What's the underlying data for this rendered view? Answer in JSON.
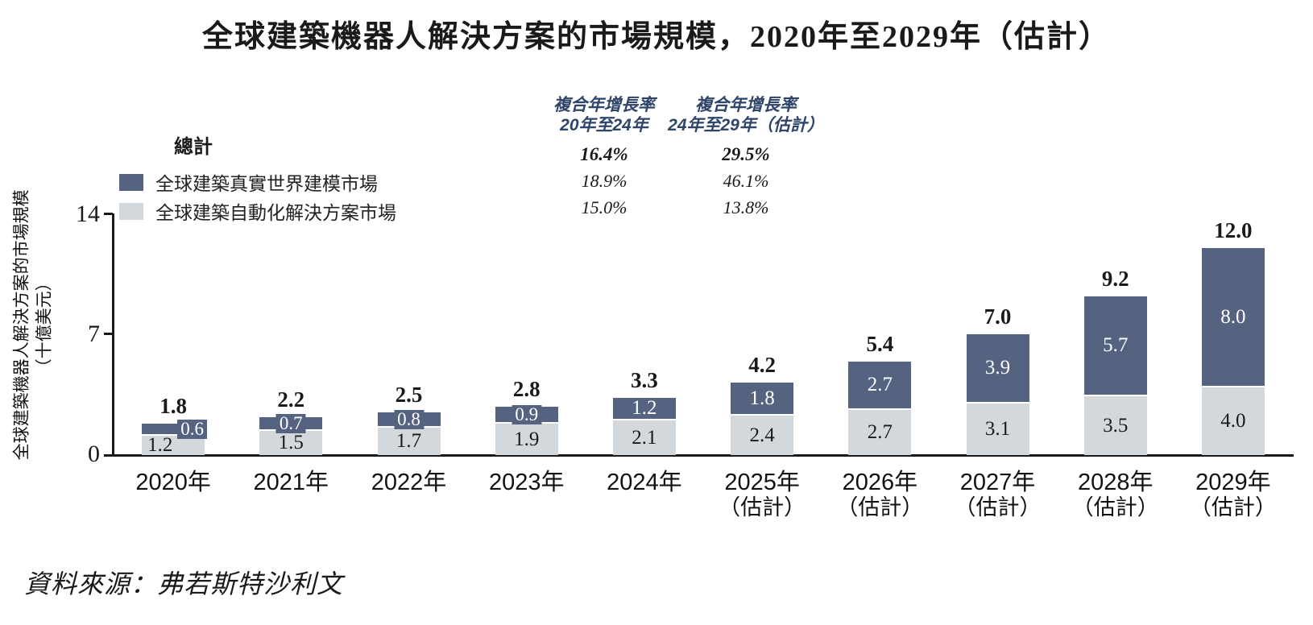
{
  "title": "全球建築機器人解決方案的市場規模，2020年至2029年（估計）",
  "y_axis": {
    "label": "全球建築機器人解決方案的市場規模",
    "unit": "（十億美元）",
    "ticks": [
      "14",
      "7",
      "0"
    ]
  },
  "legend": {
    "total_label": "總計",
    "series": [
      {
        "name": "全球建築真實世界建模市場",
        "color": "#566380"
      },
      {
        "name": "全球建築自動化解決方案市場",
        "color": "#d3d8dd"
      }
    ]
  },
  "cagr": {
    "columns": [
      {
        "header": [
          "複合年增長率",
          "20年至24年"
        ],
        "rows": [
          "16.4%",
          "18.9%",
          "15.0%"
        ]
      },
      {
        "header": [
          "複合年增長率",
          "24年至29年（估計）"
        ],
        "rows": [
          "29.5%",
          "46.1%",
          "13.8%"
        ]
      }
    ]
  },
  "source": "資料來源：弗若斯特沙利文",
  "chart_data": {
    "type": "bar",
    "stacked": true,
    "title": "全球建築機器人解決方案的市場規模，2020年至2029年（估計）",
    "ylabel": "全球建築機器人解決方案的市場規模（十億美元）",
    "ylim": [
      0,
      14
    ],
    "yticks": [
      0,
      7,
      14
    ],
    "grid": false,
    "legend_position": "top-left",
    "categories": [
      "2020年",
      "2021年",
      "2022年",
      "2023年",
      "2024年",
      "2025年（估計）",
      "2026年（估計）",
      "2027年（估計）",
      "2028年（估計）",
      "2029年（估計）"
    ],
    "series": [
      {
        "name": "全球建築真實世界建模市場",
        "color": "#566380",
        "values": [
          0.6,
          0.7,
          0.8,
          0.9,
          1.2,
          1.8,
          2.7,
          3.9,
          5.7,
          8.0
        ]
      },
      {
        "name": "全球建築自動化解決方案市場",
        "color": "#d3d8dd",
        "values": [
          1.2,
          1.5,
          1.7,
          1.9,
          2.1,
          2.4,
          2.7,
          3.1,
          3.5,
          4.0
        ]
      }
    ],
    "totals": [
      1.8,
      2.2,
      2.5,
      2.8,
      3.3,
      4.2,
      5.4,
      7.0,
      9.2,
      12.0
    ]
  }
}
